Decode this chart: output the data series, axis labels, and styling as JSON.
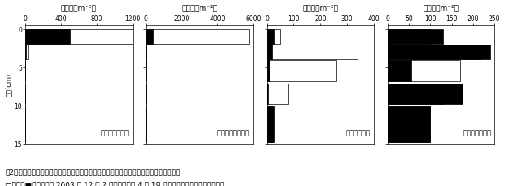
{
  "panels": [
    {
      "title": "種子数（m⁻²）",
      "label": "不耕起・除草剤",
      "xlim": [
        0,
        1200
      ],
      "xticks": [
        0,
        400,
        800,
        1200
      ],
      "white_values": [
        1200,
        30,
        0,
        0,
        0
      ],
      "black_values": [
        500,
        10,
        0,
        0,
        0
      ]
    },
    {
      "title": "種子数（m⁻²）",
      "label": "不耕起・無除草剤",
      "xlim": [
        0,
        6000
      ],
      "xticks": [
        0,
        2000,
        4000,
        6000
      ],
      "white_values": [
        5800,
        0,
        0,
        0,
        0
      ],
      "black_values": [
        400,
        0,
        0,
        0,
        0
      ]
    },
    {
      "title": "種子数（m⁻²）",
      "label": "耕起・除草剤",
      "xlim": [
        0,
        400
      ],
      "xticks": [
        0,
        100,
        200,
        300,
        400
      ],
      "white_values": [
        50,
        340,
        260,
        80,
        20
      ],
      "black_values": [
        30,
        20,
        10,
        5,
        30
      ]
    },
    {
      "title": "種子数（m⁻²）",
      "label": "耕起・無除草剤",
      "xlim": [
        0,
        250
      ],
      "xticks": [
        0,
        50,
        100,
        150,
        200,
        250
      ],
      "white_values": [
        100,
        220,
        170,
        130,
        100
      ],
      "black_values": [
        130,
        240,
        55,
        175,
        100
      ]
    }
  ],
  "depth_starts": [
    0,
    2,
    4,
    7,
    10
  ],
  "depth_ends": [
    2,
    4,
    7,
    10,
    15
  ],
  "ylabel": "土層(cm)",
  "ylim": [
    15,
    -0.5
  ],
  "yticks": [
    0,
    5,
    10,
    15
  ],
  "caption_line1": "図2　大豆連作畊におけるメヒシバ種子の冬（自然散布後）および翌春の土中深度分布。",
  "caption_line2": "□および■はそれぞれ 2003 年 12 月 2 日および翌年 4 月 19 日に採取した土壌中の種子数。",
  "white_color": "white",
  "gray_color": "#aaaaaa",
  "black_color": "black",
  "bar_edge_color": "black",
  "background_color": "white",
  "fontsize_title": 6.5,
  "fontsize_tick": 5.5,
  "fontsize_label": 6,
  "fontsize_caption": 6.5
}
